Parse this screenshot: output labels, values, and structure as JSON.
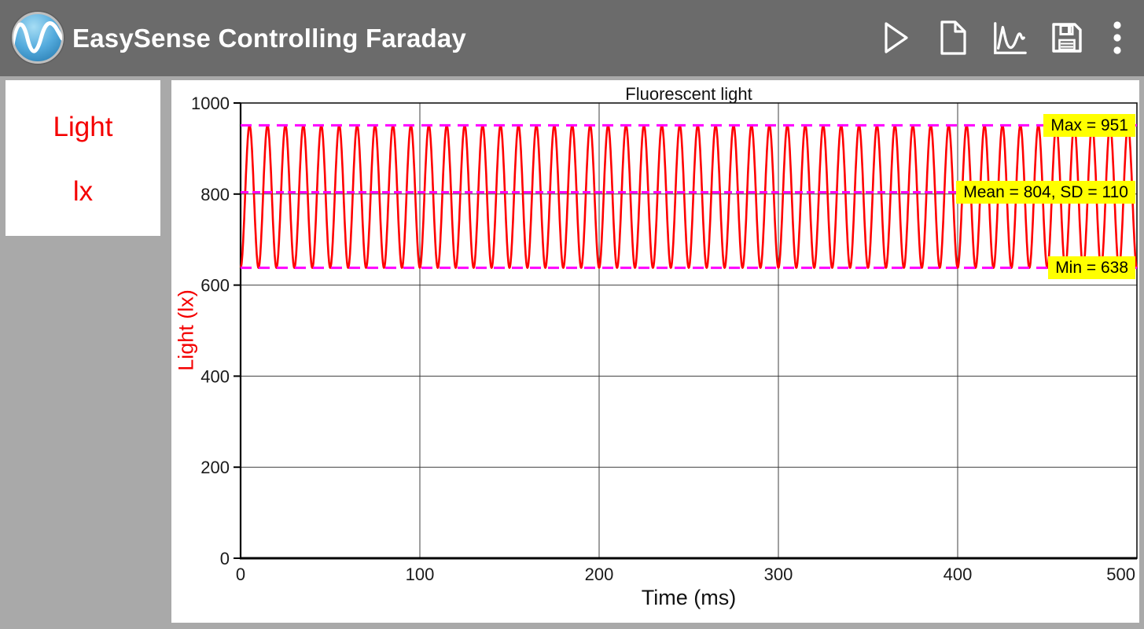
{
  "colors": {
    "top_bar": "#6b6b6b",
    "background": "#a9a9a9",
    "panel": "#ffffff",
    "sensor_text": "#f40000",
    "trace": "#ff0000",
    "stat_line": "#ff00ff",
    "stat_label_bg": "#ffff00",
    "grid": "#3f3f3f"
  },
  "title_bar": {
    "app_title": "EasySense Controlling Faraday",
    "logo_icon": "sine-wave-sphere-logo",
    "action_icons": [
      "play-icon",
      "new-file-icon",
      "graph-icon",
      "save-icon",
      "overflow-menu-icon"
    ]
  },
  "sensor_panel": {
    "sensor_name": "Light",
    "unit": "lx"
  },
  "chart_data": {
    "type": "line",
    "title": "Fluorescent light",
    "xlabel": "Time (ms)",
    "ylabel": "Light (lx)",
    "xlim": [
      0,
      500
    ],
    "ylim": [
      0,
      1000
    ],
    "x_ticks": [
      0,
      100,
      200,
      300,
      400,
      500
    ],
    "y_ticks": [
      0,
      200,
      400,
      600,
      800,
      1000
    ],
    "grid": true,
    "legend_position": "none",
    "series": [
      {
        "name": "Light",
        "unit": "lx",
        "color": "#ff0000",
        "waveform": "sine",
        "period_ms": 10,
        "phase_peak_ms": 5,
        "min": 638,
        "max": 951,
        "mean": 804,
        "sd": 110,
        "t_start": 0,
        "t_end": 500
      }
    ],
    "annotations": [
      {
        "id": "max",
        "label": "Max = 951",
        "value": 951,
        "line_style": "dashed",
        "color": "#ff00ff"
      },
      {
        "id": "mean",
        "label": "Mean = 804, SD = 110",
        "value": 804,
        "line_style": "dashed",
        "color": "#ff00ff"
      },
      {
        "id": "min",
        "label": "Min = 638",
        "value": 638,
        "line_style": "dashed",
        "color": "#ff00ff"
      }
    ]
  }
}
